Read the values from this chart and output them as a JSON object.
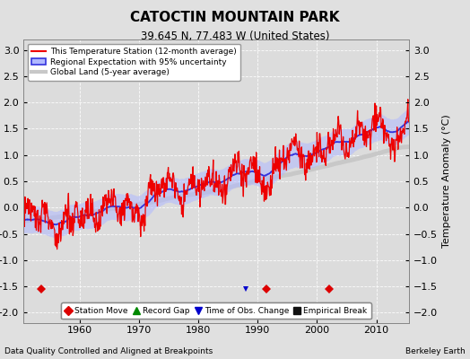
{
  "title": "CATOCTIN MOUNTAIN PARK",
  "subtitle": "39.645 N, 77.483 W (United States)",
  "ylabel": "Temperature Anomaly (°C)",
  "xlabel_left": "Data Quality Controlled and Aligned at Breakpoints",
  "xlabel_right": "Berkeley Earth",
  "ylim": [
    -2.2,
    3.2
  ],
  "xlim": [
    1950.5,
    2015.5
  ],
  "yticks": [
    -2,
    -1.5,
    -1,
    -0.5,
    0,
    0.5,
    1,
    1.5,
    2,
    2.5,
    3
  ],
  "xticks": [
    1960,
    1970,
    1980,
    1990,
    2000,
    2010
  ],
  "background_color": "#e0e0e0",
  "plot_bg_color": "#dcdcdc",
  "station_moves": [
    1953.5,
    1991.5,
    2002.0
  ],
  "time_of_obs_change": 1988.0,
  "legend_line1": "This Temperature Station (12-month average)",
  "legend_line2": "Regional Expectation with 95% uncertainty",
  "legend_line3": "Global Land (5-year average)",
  "mk_label1": "Station Move",
  "mk_label2": "Record Gap",
  "mk_label3": "Time of Obs. Change",
  "mk_label4": "Empirical Break"
}
